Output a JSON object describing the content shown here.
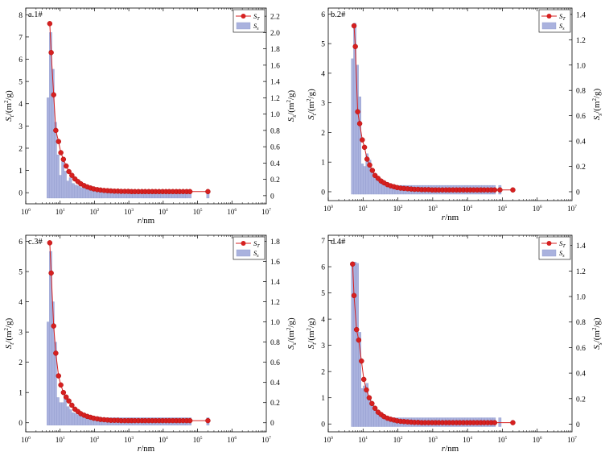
{
  "figure": {
    "colors": {
      "st": "#d62020",
      "ss": "#aab2de",
      "ss_edge": "#8e98cc",
      "axis": "#000000"
    }
  },
  "chart_data": [
    {
      "type": "line+bar",
      "panel_label": "a.1#",
      "xlabel": "r/nm",
      "x_scale": "log",
      "xlim": [
        1,
        10000000
      ],
      "x_tick_exponents": [
        0,
        1,
        2,
        3,
        4,
        5,
        6
      ],
      "ylabel_left": "St/(m2/g)",
      "ylabel_right": "Ss/(m2/g)",
      "ylim_left": [
        -0.5,
        8.3
      ],
      "yticks_left": [
        0,
        1,
        2,
        3,
        4,
        5,
        6,
        7,
        8
      ],
      "ylim_right": [
        -0.1,
        2.3
      ],
      "yticks_right": [
        0,
        0.2,
        0.4,
        0.6,
        0.8,
        1.0,
        1.2,
        1.4,
        1.6,
        1.8,
        2.0,
        2.2
      ],
      "legend": {
        "position": "top-right",
        "entries": [
          "ST",
          "Ss"
        ]
      },
      "series": [
        {
          "name": "ST",
          "kind": "line-marker",
          "x": [
            5,
            5.5,
            6.5,
            7.5,
            9,
            10.5,
            12.5,
            15,
            18,
            22,
            27,
            33,
            40,
            50,
            62,
            77,
            95,
            120,
            150,
            190,
            240,
            300,
            380,
            480,
            600,
            760,
            960,
            1200,
            1500,
            1900,
            2400,
            3000,
            3800,
            4800,
            6000,
            7600,
            9600,
            12000,
            15000,
            19000,
            24000,
            30000,
            38000,
            48000,
            60000,
            200000
          ],
          "y": [
            7.6,
            6.3,
            4.4,
            2.8,
            2.3,
            1.8,
            1.5,
            1.2,
            0.95,
            0.78,
            0.62,
            0.5,
            0.4,
            0.32,
            0.26,
            0.21,
            0.17,
            0.14,
            0.12,
            0.1,
            0.09,
            0.08,
            0.07,
            0.07,
            0.06,
            0.06,
            0.06,
            0.05,
            0.05,
            0.05,
            0.05,
            0.05,
            0.05,
            0.05,
            0.05,
            0.05,
            0.05,
            0.05,
            0.05,
            0.05,
            0.05,
            0.05,
            0.05,
            0.05,
            0.05,
            0.05
          ]
        },
        {
          "name": "Ss",
          "kind": "bar",
          "x": [
            4.5,
            5.3,
            6.2,
            7.3,
            8.6,
            10.2,
            12,
            14,
            17,
            20,
            24,
            29,
            35,
            42,
            50,
            60,
            72,
            87,
            105,
            126,
            150,
            180,
            220,
            265,
            320,
            385,
            460,
            550,
            660,
            800,
            960,
            1150,
            1400,
            1700,
            2000,
            2450,
            2950,
            3550,
            4300,
            5200,
            6300,
            7600,
            9200,
            11000,
            13300,
            16000,
            19300,
            23300,
            28000,
            34000,
            41000,
            49000,
            60000,
            200000
          ],
          "y": [
            1.2,
            2.0,
            1.55,
            0.9,
            0.5,
            0.25,
            0.43,
            0.3,
            0.18,
            0.22,
            0.15,
            0.13,
            0.12,
            0.1,
            0.09,
            0.09,
            0.08,
            0.08,
            0.07,
            0.07,
            0.07,
            0.07,
            0.06,
            0.06,
            0.06,
            0.06,
            0.06,
            0.06,
            0.06,
            0.06,
            0.06,
            0.06,
            0.06,
            0.06,
            0.06,
            0.06,
            0.06,
            0.06,
            0.06,
            0.06,
            0.06,
            0.06,
            0.06,
            0.06,
            0.06,
            0.06,
            0.06,
            0.06,
            0.06,
            0.06,
            0.06,
            0.06,
            0.06,
            0.06
          ]
        }
      ]
    },
    {
      "type": "line+bar",
      "panel_label": "b.2#",
      "xlabel": "r/nm",
      "x_scale": "log",
      "xlim": [
        1,
        10000000
      ],
      "x_tick_exponents": [
        0,
        1,
        2,
        3,
        4,
        5,
        6
      ],
      "ylabel_left": "St/(m2/g)",
      "ylabel_right": "Ss/(m2/g)",
      "ylim_left": [
        -0.3,
        6.2
      ],
      "yticks_left": [
        0,
        1,
        2,
        3,
        4,
        5,
        6
      ],
      "ylim_right": [
        -0.07,
        1.45
      ],
      "yticks_right": [
        0,
        0.2,
        0.4,
        0.6,
        0.8,
        1.0,
        1.2,
        1.4
      ],
      "legend": {
        "position": "top-right",
        "entries": [
          "ST",
          "Ss"
        ]
      },
      "series": [
        {
          "name": "ST",
          "kind": "line-marker",
          "x": [
            5.5,
            6,
            7,
            8,
            9.5,
            11,
            13,
            15.5,
            18.5,
            22,
            27,
            33,
            40,
            50,
            62,
            77,
            95,
            120,
            150,
            190,
            240,
            300,
            380,
            480,
            600,
            760,
            960,
            1200,
            1500,
            1900,
            2400,
            3000,
            3800,
            4800,
            6000,
            7600,
            9600,
            12000,
            15000,
            19000,
            24000,
            30000,
            38000,
            48000,
            60000,
            85000,
            200000
          ],
          "y": [
            5.6,
            4.9,
            2.7,
            2.3,
            1.75,
            1.5,
            1.1,
            0.9,
            0.72,
            0.55,
            0.45,
            0.36,
            0.3,
            0.24,
            0.2,
            0.17,
            0.14,
            0.12,
            0.11,
            0.1,
            0.09,
            0.08,
            0.08,
            0.07,
            0.07,
            0.07,
            0.06,
            0.06,
            0.06,
            0.06,
            0.06,
            0.06,
            0.06,
            0.06,
            0.06,
            0.06,
            0.06,
            0.06,
            0.06,
            0.06,
            0.06,
            0.06,
            0.06,
            0.06,
            0.06,
            0.06,
            0.06
          ]
        },
        {
          "name": "Ss",
          "kind": "bar",
          "x": [
            5,
            5.8,
            6.8,
            8,
            9.4,
            11,
            13,
            15.5,
            18.5,
            22,
            26,
            31,
            37,
            44,
            53,
            63,
            75,
            90,
            108,
            130,
            155,
            185,
            225,
            270,
            325,
            390,
            470,
            565,
            680,
            820,
            985,
            1190,
            1430,
            1720,
            2070,
            2500,
            3000,
            3600,
            4350,
            5250,
            6300,
            7600,
            9150,
            11000,
            13250,
            16000,
            19200,
            23100,
            27800,
            33500,
            40300,
            48500,
            58400,
            85000
          ],
          "y": [
            1.05,
            1.33,
            1.0,
            0.75,
            0.22,
            0.2,
            0.3,
            0.25,
            0.18,
            0.13,
            0.1,
            0.08,
            0.07,
            0.06,
            0.06,
            0.05,
            0.05,
            0.05,
            0.05,
            0.05,
            0.05,
            0.05,
            0.05,
            0.05,
            0.05,
            0.05,
            0.05,
            0.05,
            0.05,
            0.05,
            0.05,
            0.05,
            0.05,
            0.05,
            0.05,
            0.05,
            0.05,
            0.05,
            0.05,
            0.05,
            0.05,
            0.05,
            0.05,
            0.05,
            0.05,
            0.05,
            0.05,
            0.05,
            0.05,
            0.05,
            0.05,
            0.05,
            0.05,
            0.05
          ]
        }
      ]
    },
    {
      "type": "line+bar",
      "panel_label": "c.3#",
      "xlabel": "r/nm",
      "x_scale": "log",
      "xlim": [
        1,
        10000000
      ],
      "x_tick_exponents": [
        0,
        1,
        2,
        3,
        4,
        5,
        6
      ],
      "ylabel_left": "St/(m2/g)",
      "ylabel_right": "Ss/(m2/g)",
      "ylim_left": [
        -0.3,
        6.2
      ],
      "yticks_left": [
        0,
        1,
        2,
        3,
        4,
        5,
        6
      ],
      "ylim_right": [
        -0.09,
        1.86
      ],
      "yticks_right": [
        0,
        0.2,
        0.4,
        0.6,
        0.8,
        1.0,
        1.2,
        1.4,
        1.6,
        1.8
      ],
      "legend": {
        "position": "top-right",
        "entries": [
          "ST",
          "Ss"
        ]
      },
      "series": [
        {
          "name": "ST",
          "kind": "line-marker",
          "x": [
            5,
            5.5,
            6.5,
            7.5,
            9,
            10.5,
            12.5,
            15,
            18,
            22,
            27,
            33,
            40,
            50,
            62,
            77,
            95,
            120,
            150,
            190,
            240,
            300,
            380,
            480,
            600,
            760,
            960,
            1200,
            1500,
            1900,
            2400,
            3000,
            3800,
            4800,
            6000,
            7600,
            9600,
            12000,
            15000,
            19000,
            24000,
            30000,
            38000,
            48000,
            60000,
            200000
          ],
          "y": [
            5.95,
            4.95,
            3.2,
            2.3,
            1.55,
            1.25,
            1.0,
            0.85,
            0.72,
            0.58,
            0.45,
            0.37,
            0.3,
            0.25,
            0.21,
            0.18,
            0.15,
            0.13,
            0.11,
            0.1,
            0.09,
            0.08,
            0.08,
            0.08,
            0.07,
            0.07,
            0.07,
            0.07,
            0.07,
            0.07,
            0.07,
            0.07,
            0.07,
            0.07,
            0.07,
            0.07,
            0.07,
            0.07,
            0.07,
            0.07,
            0.07,
            0.07,
            0.07,
            0.07,
            0.07,
            0.07
          ]
        },
        {
          "name": "Ss",
          "kind": "bar",
          "x": [
            4.5,
            5.3,
            6.2,
            7.3,
            8.6,
            10.2,
            12,
            14,
            17,
            20,
            24,
            29,
            35,
            42,
            50,
            60,
            72,
            87,
            105,
            126,
            150,
            180,
            220,
            265,
            320,
            385,
            460,
            550,
            660,
            800,
            960,
            1150,
            1400,
            1700,
            2000,
            2450,
            2950,
            3550,
            4300,
            5200,
            6300,
            7600,
            9200,
            11000,
            13300,
            16000,
            19300,
            23300,
            28000,
            34000,
            41000,
            49000,
            60000,
            200000
          ],
          "y": [
            1.0,
            1.7,
            1.2,
            0.8,
            0.25,
            0.2,
            0.2,
            0.27,
            0.16,
            0.13,
            0.1,
            0.09,
            0.08,
            0.07,
            0.06,
            0.06,
            0.06,
            0.06,
            0.06,
            0.06,
            0.05,
            0.05,
            0.05,
            0.05,
            0.05,
            0.05,
            0.05,
            0.05,
            0.05,
            0.05,
            0.05,
            0.05,
            0.05,
            0.05,
            0.05,
            0.05,
            0.05,
            0.05,
            0.05,
            0.05,
            0.05,
            0.05,
            0.05,
            0.05,
            0.05,
            0.05,
            0.05,
            0.05,
            0.05,
            0.05,
            0.05,
            0.05,
            0.05,
            0.05
          ]
        }
      ]
    },
    {
      "type": "line+bar",
      "panel_label": "d.4#",
      "xlabel": "r/nm",
      "x_scale": "log",
      "xlim": [
        1,
        10000000
      ],
      "x_tick_exponents": [
        0,
        1,
        2,
        3,
        4,
        5,
        6
      ],
      "ylabel_left": "St/(m2/g)",
      "ylabel_right": "Ss/(m2/g)",
      "ylim_left": [
        -0.3,
        7.2
      ],
      "yticks_left": [
        0,
        1,
        2,
        3,
        4,
        5,
        6,
        7
      ],
      "ylim_right": [
        -0.06,
        1.48
      ],
      "yticks_right": [
        0,
        0.2,
        0.4,
        0.6,
        0.8,
        1.0,
        1.2,
        1.4
      ],
      "legend": {
        "position": "top-right",
        "entries": [
          "ST",
          "Ss"
        ]
      },
      "series": [
        {
          "name": "ST",
          "kind": "line-marker",
          "x": [
            5,
            5.5,
            6.5,
            7.5,
            9,
            10.5,
            12.5,
            15,
            18,
            22,
            27,
            33,
            40,
            50,
            62,
            77,
            95,
            120,
            150,
            190,
            240,
            300,
            380,
            480,
            600,
            760,
            960,
            1200,
            1500,
            1900,
            2400,
            3000,
            3800,
            4800,
            6000,
            7600,
            9600,
            12000,
            15000,
            19000,
            24000,
            30000,
            38000,
            48000,
            60000,
            200000
          ],
          "y": [
            6.1,
            4.9,
            3.6,
            3.2,
            2.4,
            1.7,
            1.3,
            1.0,
            0.78,
            0.6,
            0.45,
            0.36,
            0.28,
            0.22,
            0.18,
            0.15,
            0.12,
            0.1,
            0.09,
            0.08,
            0.07,
            0.06,
            0.06,
            0.05,
            0.05,
            0.05,
            0.05,
            0.05,
            0.05,
            0.05,
            0.05,
            0.05,
            0.05,
            0.05,
            0.05,
            0.05,
            0.05,
            0.05,
            0.05,
            0.05,
            0.05,
            0.05,
            0.05,
            0.05,
            0.05,
            0.05
          ]
        },
        {
          "name": "Ss",
          "kind": "bar",
          "x": [
            5,
            5.8,
            6.8,
            8,
            9.4,
            11,
            13,
            15.5,
            18.5,
            22,
            26,
            31,
            37,
            44,
            53,
            63,
            75,
            90,
            108,
            130,
            155,
            185,
            225,
            270,
            325,
            390,
            470,
            565,
            680,
            820,
            985,
            1190,
            1430,
            1720,
            2070,
            2500,
            3000,
            3600,
            4350,
            5250,
            6300,
            7600,
            9150,
            11000,
            13250,
            16000,
            19200,
            23100,
            27800,
            33500,
            40300,
            48500,
            58400,
            85000
          ],
          "y": [
            1.25,
            1.27,
            1.26,
            0.72,
            0.28,
            0.3,
            0.32,
            0.22,
            0.16,
            0.12,
            0.09,
            0.08,
            0.07,
            0.06,
            0.05,
            0.05,
            0.05,
            0.05,
            0.05,
            0.05,
            0.05,
            0.05,
            0.05,
            0.05,
            0.05,
            0.05,
            0.05,
            0.05,
            0.05,
            0.05,
            0.05,
            0.05,
            0.05,
            0.05,
            0.05,
            0.05,
            0.05,
            0.05,
            0.05,
            0.05,
            0.05,
            0.05,
            0.05,
            0.05,
            0.05,
            0.05,
            0.05,
            0.05,
            0.05,
            0.05,
            0.05,
            0.05,
            0.05,
            0.05
          ]
        }
      ]
    }
  ]
}
